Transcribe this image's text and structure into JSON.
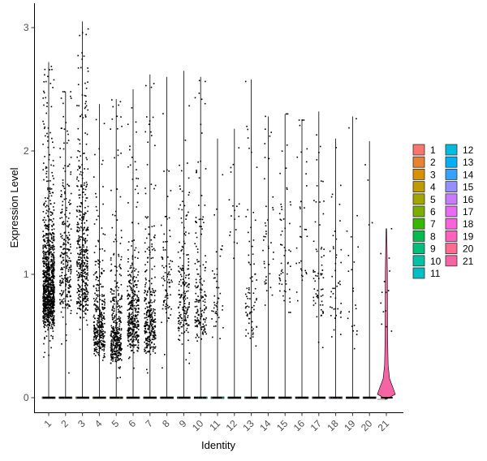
{
  "chart_data": {
    "type": "violin",
    "xlabel": "Identity",
    "ylabel": "Expression Level",
    "categories": [
      "1",
      "2",
      "3",
      "4",
      "5",
      "6",
      "7",
      "8",
      "9",
      "10",
      "11",
      "12",
      "13",
      "14",
      "15",
      "16",
      "17",
      "18",
      "19",
      "20",
      "21"
    ],
    "ylim": [
      -0.15,
      3.05
    ],
    "yticks": [
      0,
      1,
      2,
      3
    ],
    "grid": false,
    "legend_position": "right",
    "jitter_points": true,
    "colors": [
      "#F8766D",
      "#EA8331",
      "#D89000",
      "#C09B00",
      "#A3A500",
      "#7CAE00",
      "#39B600",
      "#00BB4E",
      "#00BF7D",
      "#00C1A3",
      "#00BFC4",
      "#00BAE0",
      "#00B0F6",
      "#35A2FF",
      "#9590FF",
      "#C77CFF",
      "#E76BF3",
      "#FA62DB",
      "#FF62BC",
      "#FF6C91",
      "#F564A3"
    ],
    "series": [
      {
        "name": "1",
        "max_value": 2.72,
        "nonzero_points": 1000,
        "point_median": 0.75,
        "point_spread": 0.4,
        "point_min": 0.3
      },
      {
        "name": "2",
        "max_value": 2.48,
        "nonzero_points": 260,
        "point_median": 0.9,
        "point_spread": 0.6,
        "point_min": 0.15
      },
      {
        "name": "3",
        "max_value": 3.05,
        "nonzero_points": 430,
        "point_median": 0.85,
        "point_spread": 0.6,
        "point_min": 0.2
      },
      {
        "name": "4",
        "max_value": 2.38,
        "nonzero_points": 330,
        "point_median": 0.42,
        "point_spread": 0.35,
        "point_min": 0.18
      },
      {
        "name": "5",
        "max_value": 2.42,
        "nonzero_points": 380,
        "point_median": 0.38,
        "point_spread": 0.3,
        "point_min": 0.15
      },
      {
        "name": "6",
        "max_value": 2.5,
        "nonzero_points": 350,
        "point_median": 0.5,
        "point_spread": 0.35,
        "point_min": 0.2
      },
      {
        "name": "7",
        "max_value": 2.62,
        "nonzero_points": 300,
        "point_median": 0.48,
        "point_spread": 0.35,
        "point_min": 0.2
      },
      {
        "name": "8",
        "max_value": 2.6,
        "nonzero_points": 80,
        "point_median": 0.8,
        "point_spread": 0.5,
        "point_min": 0.2
      },
      {
        "name": "9",
        "max_value": 2.65,
        "nonzero_points": 180,
        "point_median": 0.6,
        "point_spread": 0.45,
        "point_min": 0.25
      },
      {
        "name": "10",
        "max_value": 2.6,
        "nonzero_points": 170,
        "point_median": 0.6,
        "point_spread": 0.4,
        "point_min": 0.25
      },
      {
        "name": "11",
        "max_value": 2.1,
        "nonzero_points": 45,
        "point_median": 0.65,
        "point_spread": 0.4,
        "point_min": 0.3
      },
      {
        "name": "12",
        "max_value": 2.18,
        "nonzero_points": 18,
        "point_median": 1.5,
        "point_spread": 0.5,
        "point_min": 0.8
      },
      {
        "name": "13",
        "max_value": 2.58,
        "nonzero_points": 75,
        "point_median": 0.6,
        "point_spread": 0.45,
        "point_min": 0.3
      },
      {
        "name": "14",
        "max_value": 2.28,
        "nonzero_points": 40,
        "point_median": 1.0,
        "point_spread": 0.55,
        "point_min": 0.3
      },
      {
        "name": "15",
        "max_value": 2.3,
        "nonzero_points": 55,
        "point_median": 0.9,
        "point_spread": 0.55,
        "point_min": 0.3
      },
      {
        "name": "16",
        "max_value": 2.25,
        "nonzero_points": 35,
        "point_median": 1.0,
        "point_spread": 0.55,
        "point_min": 0.3
      },
      {
        "name": "17",
        "max_value": 2.32,
        "nonzero_points": 65,
        "point_median": 0.75,
        "point_spread": 0.5,
        "point_min": 0.3
      },
      {
        "name": "18",
        "max_value": 2.1,
        "nonzero_points": 45,
        "point_median": 0.7,
        "point_spread": 0.45,
        "point_min": 0.3
      },
      {
        "name": "19",
        "max_value": 2.28,
        "nonzero_points": 22,
        "point_median": 0.5,
        "point_spread": 0.5,
        "point_min": 0.3
      },
      {
        "name": "20",
        "max_value": 2.08,
        "nonzero_points": 4,
        "point_median": 1.5,
        "point_spread": 0.4,
        "point_min": 0.8
      },
      {
        "name": "21",
        "max_value": 1.37,
        "nonzero_points": 14,
        "point_median": 0.6,
        "point_spread": 0.3,
        "point_min": 0.3,
        "filled_violin": true
      }
    ]
  }
}
